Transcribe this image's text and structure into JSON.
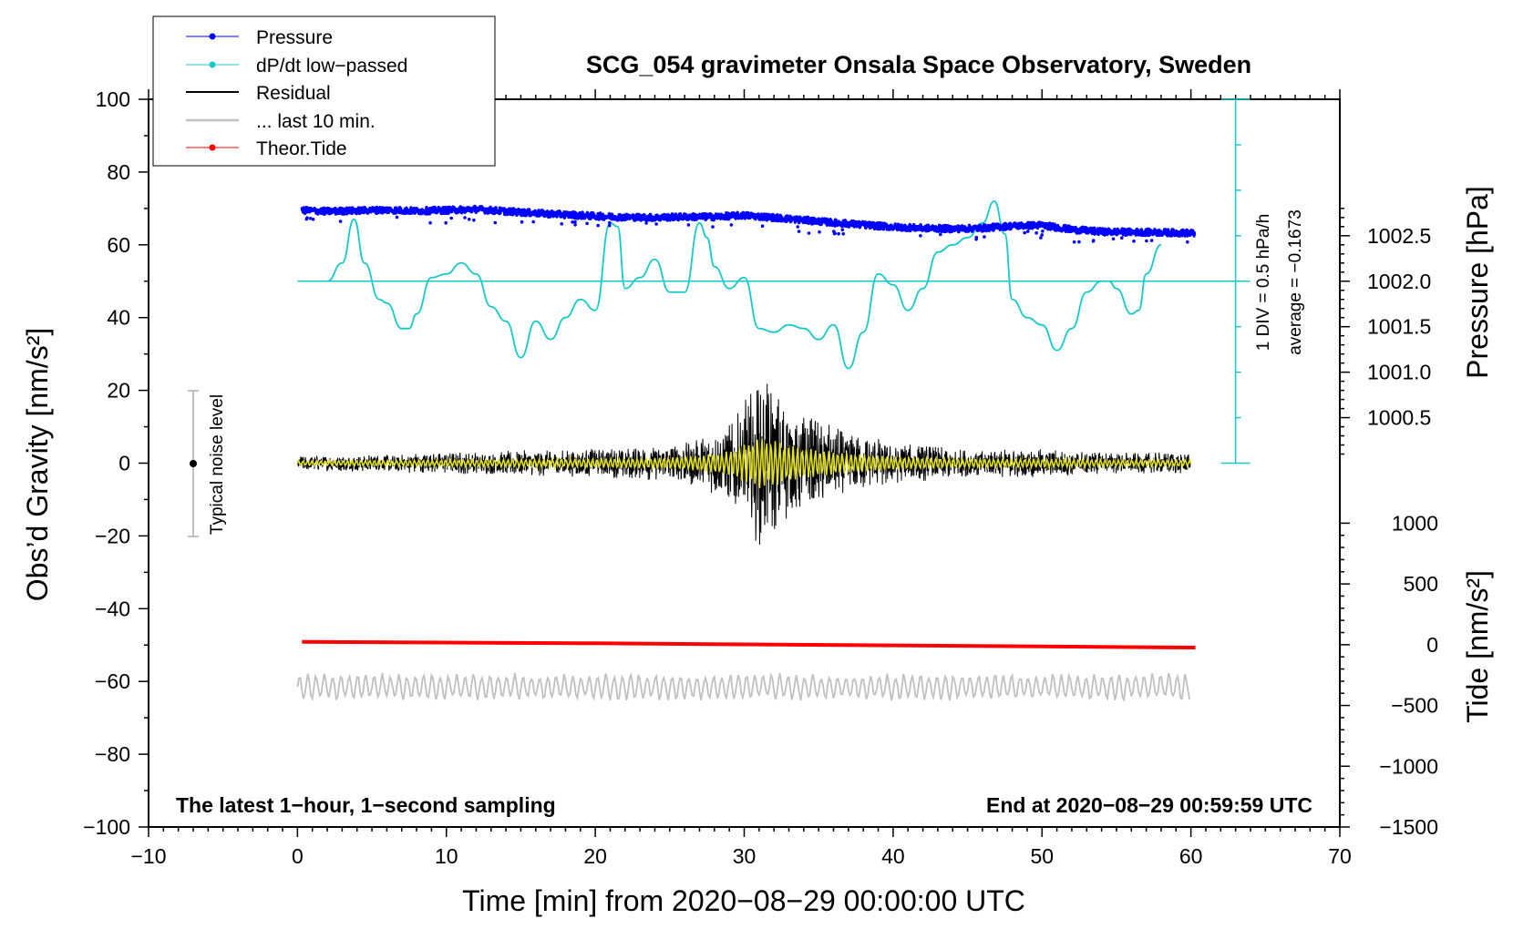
{
  "colors": {
    "pressure": "#0000ff",
    "dpdt": "#18c8c8",
    "residual": "#000000",
    "last10": "#c0c0c0",
    "tide": "#ff0000",
    "filtered": "#e0e020"
  },
  "chart_data": {
    "type": "line",
    "title": "SCG_054 gravimeter Onsala Space Observatory, Sweden",
    "xlabel": "Time [min] from 2020−08−29 00:00:00 UTC",
    "ylabel_left": "Obs’d Gravity [nm/s²]",
    "ylabel_pressure": "Pressure [hPa]",
    "ylabel_tide": "Tide [nm/s²]",
    "xlim": [
      -10,
      70
    ],
    "ylim": [
      -100,
      100
    ],
    "x_ticks": [
      -10,
      0,
      10,
      20,
      30,
      40,
      50,
      60,
      70
    ],
    "x_tick_labels": [
      "−10",
      "0",
      "10",
      "20",
      "30",
      "40",
      "50",
      "60",
      "70"
    ],
    "y_ticks": [
      100,
      80,
      60,
      40,
      20,
      0,
      -20,
      -40,
      -60,
      -80,
      -100
    ],
    "y_tick_labels": [
      "100",
      "80",
      "60",
      "40",
      "20",
      "0",
      "−20",
      "−40",
      "−60",
      "−80",
      "−100"
    ],
    "pressure_axis": {
      "ticks": [
        1002.5,
        1002.0,
        1001.5,
        1001.0,
        1000.5
      ],
      "tick_labels": [
        "1002.5",
        "1002.0",
        "1001.5",
        "1001.0",
        "1000.5"
      ],
      "y_at_base": 0,
      "base_value": 1000.0,
      "units_per_hpa": 25
    },
    "tide_axis": {
      "ticks": [
        1000,
        500,
        0,
        -500,
        -1000,
        -1500
      ],
      "tick_labels": [
        "1000",
        "500",
        "0",
        "−500",
        "−1000",
        "−1500"
      ],
      "range": [
        -1500,
        1000
      ]
    },
    "legend": {
      "placement": "top-left",
      "entries": [
        {
          "label": "Pressure",
          "color": "#0000ff",
          "marker": true
        },
        {
          "label": "dP/dt low−passed",
          "color": "#18c8c8",
          "marker": true
        },
        {
          "label": "Residual",
          "color": "#000000",
          "marker": false
        },
        {
          "label": "... last 10 min.",
          "color": "#c0c0c0",
          "marker": false
        },
        {
          "label": "Theor.Tide",
          "color": "#ff0000",
          "marker": true
        }
      ]
    },
    "noise_level": {
      "x": -7,
      "center": 0,
      "half_range": 20,
      "label": "Typical noise level"
    },
    "dpdt_scale": {
      "label_div": "1 DIV = 0.5 hPa/h",
      "label_avg": "average = −0.1673",
      "x": 63,
      "y_from": 0,
      "y_to": 100,
      "baseline": 50
    },
    "footer_left": "The latest 1−hour, 1−second sampling",
    "footer_right": "End at 2020−08−29 00:59:59 UTC",
    "series": [
      {
        "name": "Pressure",
        "x": [
          0.3,
          2,
          4,
          6,
          8,
          10,
          12,
          14,
          16,
          18,
          20,
          22,
          24,
          26,
          28,
          30,
          32,
          34,
          36,
          38,
          40,
          42,
          44,
          46,
          48,
          50,
          52,
          54,
          56,
          58,
          60.3
        ],
        "y": [
          69.5,
          69.2,
          69.4,
          69.6,
          69.3,
          69.5,
          69.8,
          69.2,
          68.7,
          68.3,
          67.9,
          67.6,
          67.5,
          67.7,
          67.7,
          68.1,
          67.5,
          66.8,
          66.1,
          65.5,
          64.9,
          64.6,
          64.4,
          64.6,
          65.2,
          65.4,
          64.2,
          63.6,
          63.5,
          63.4,
          63.2
        ]
      },
      {
        "name": "dP/dt low-passed",
        "x": [
          2,
          3,
          3.8,
          4.5,
          5.5,
          6,
          7,
          7.5,
          8,
          9,
          10,
          11,
          12,
          13,
          14,
          15,
          16,
          17,
          18,
          19,
          20,
          21,
          21.5,
          22,
          23,
          24,
          25,
          26,
          27,
          27.5,
          28,
          29,
          30,
          31,
          32,
          33,
          34,
          35,
          36,
          37,
          38,
          39,
          40,
          41,
          42,
          43,
          44,
          45,
          46,
          46.8,
          47.5,
          48,
          49,
          50,
          51,
          52,
          53,
          54,
          54.5,
          55,
          56,
          56.5,
          57,
          58
        ],
        "y": [
          50,
          55,
          67,
          55,
          45,
          44,
          37,
          37,
          41,
          51,
          52,
          55,
          52,
          43,
          39,
          29,
          39,
          34,
          40,
          45,
          42,
          66,
          65,
          48,
          51,
          56,
          47,
          47,
          66,
          62,
          54,
          48,
          51,
          37,
          36,
          38,
          37,
          34,
          38,
          26,
          36,
          52,
          49,
          42,
          48,
          58,
          60,
          62,
          66,
          72,
          63,
          45,
          40,
          38,
          31,
          37,
          47,
          50,
          50,
          48,
          41,
          42,
          52,
          60
        ]
      },
      {
        "name": "Residual",
        "x": [
          0,
          60
        ],
        "envelope": [
          [
            0,
            2
          ],
          [
            10,
            3
          ],
          [
            20,
            4
          ],
          [
            25,
            5
          ],
          [
            27,
            7
          ],
          [
            29,
            11
          ],
          [
            30,
            17
          ],
          [
            31,
            23
          ],
          [
            32,
            21
          ],
          [
            33,
            16
          ],
          [
            35,
            12
          ],
          [
            37,
            9
          ],
          [
            40,
            6
          ],
          [
            45,
            4
          ],
          [
            50,
            4
          ],
          [
            55,
            3
          ],
          [
            60,
            3
          ]
        ]
      },
      {
        "name": "last 10 min.",
        "x": [
          0,
          60
        ],
        "y_center": -61.5,
        "amplitude": 3.5
      },
      {
        "name": "Theor.Tide",
        "x": [
          0.3,
          10,
          20,
          30,
          40,
          50,
          60.3
        ],
        "y": [
          -49.1,
          -49.3,
          -49.5,
          -49.8,
          -50.1,
          -50.4,
          -50.7
        ]
      }
    ]
  }
}
